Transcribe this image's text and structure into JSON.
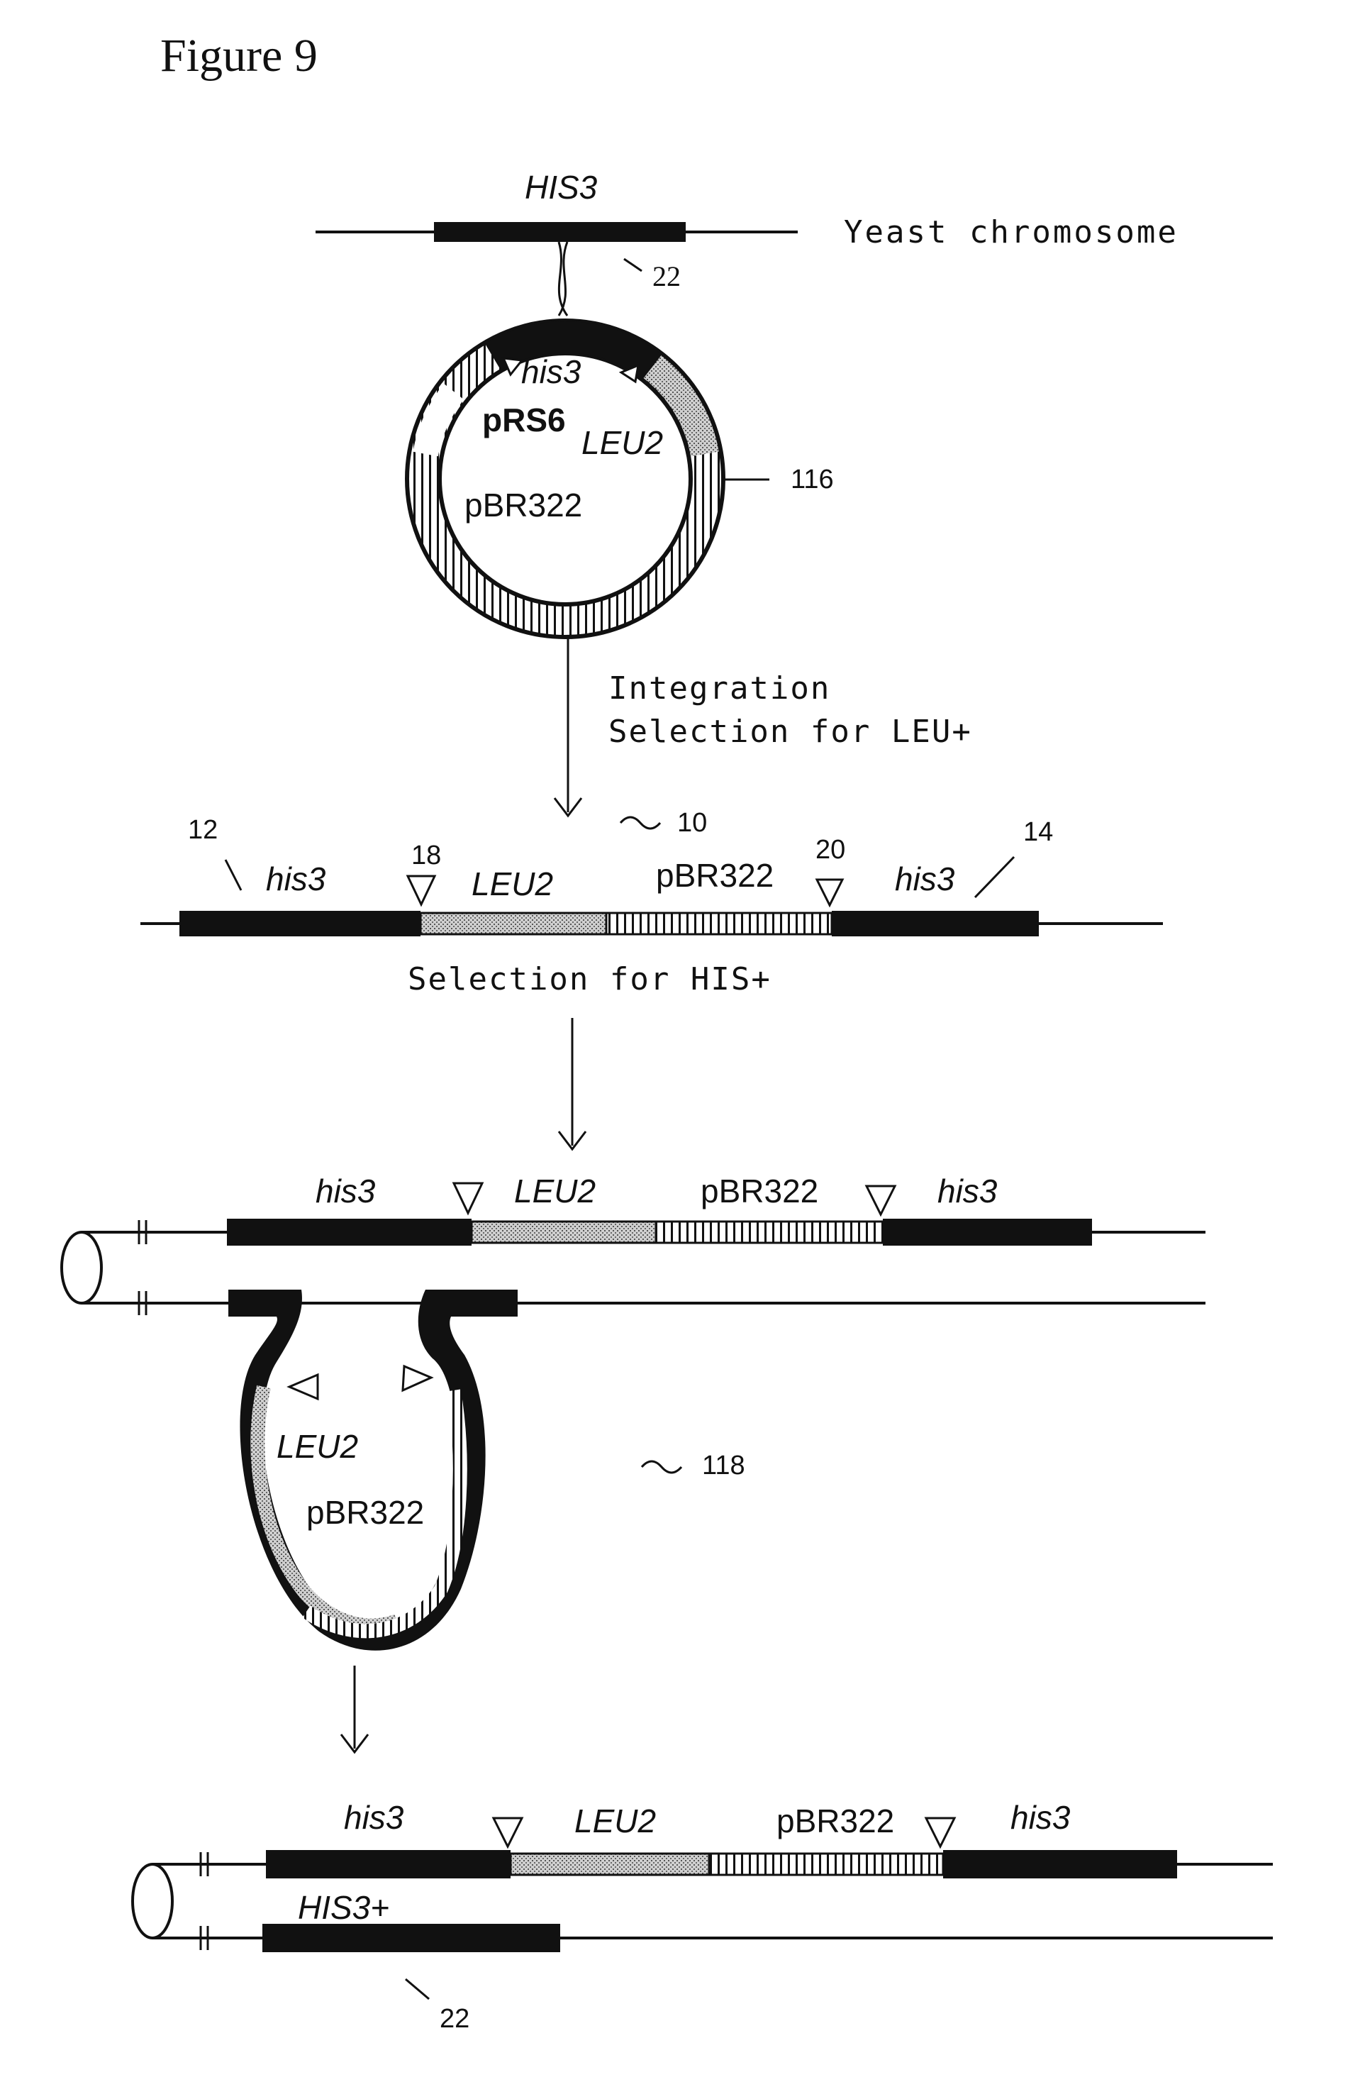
{
  "figure_title": "Figure 9",
  "step1": {
    "gene_label": "HIS3",
    "chromosome_label": "Yeast chromosome",
    "ref_22": "22",
    "plasmid": {
      "name": "pRS6",
      "his3": "his3",
      "leu2": "LEU2",
      "pbr322": "pBR322",
      "ref": "116"
    }
  },
  "arrow1": {
    "line1": "Integration",
    "line2": "Selection for LEU+"
  },
  "step2": {
    "ref_10": "10",
    "ref_12": "12",
    "ref_14": "14",
    "ref_18": "18",
    "ref_20": "20",
    "his3_left": "his3",
    "leu2": "LEU2",
    "pbr322": "pBR322",
    "his3_right": "his3",
    "caption": "Selection for HIS+"
  },
  "step3": {
    "his3_left": "his3",
    "leu2": "LEU2",
    "pbr322": "pBR322",
    "his3_right": "his3",
    "loop_leu2": "LEU2",
    "loop_pbr322": "pBR322",
    "ref_118": "118"
  },
  "step4": {
    "his3_left": "his3",
    "leu2": "LEU2",
    "pbr322": "pBR322",
    "his3_right": "his3",
    "his3_plus": "HIS3+",
    "ref_22": "22"
  },
  "colors": {
    "ink": "#111111",
    "stipple": "#9a9a9a",
    "background": "#ffffff"
  }
}
